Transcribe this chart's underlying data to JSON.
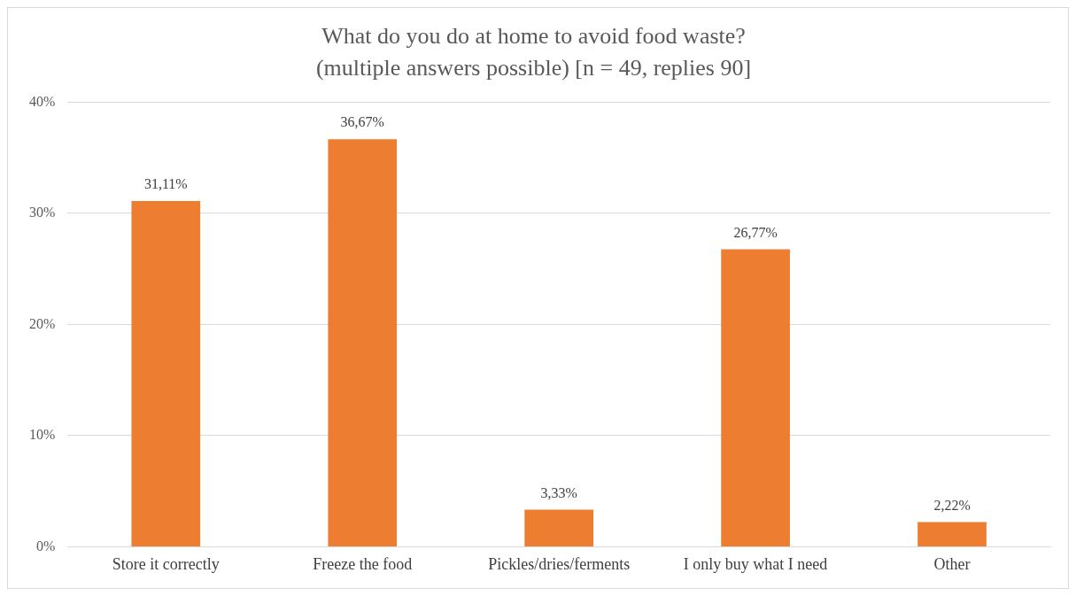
{
  "chart_data": {
    "type": "bar",
    "title": "What do you do at home to avoid food waste?",
    "subtitle": "(multiple answers possible) [n = 49, replies 90]",
    "categories": [
      "Store it correctly",
      "Freeze the food",
      "Pickles/dries/ferments",
      "I only buy what I need",
      "Other"
    ],
    "values": [
      31.11,
      36.67,
      3.33,
      26.77,
      2.22
    ],
    "value_labels": [
      "31,11%",
      "36,67%",
      "3,33%",
      "26,77%",
      "2,22%"
    ],
    "color": "#ed7d31",
    "ylim": [
      0,
      40
    ],
    "yticks": [
      {
        "value": 0,
        "label": "0%"
      },
      {
        "value": 10,
        "label": "10%"
      },
      {
        "value": 20,
        "label": "20%"
      },
      {
        "value": 30,
        "label": "30%"
      },
      {
        "value": 40,
        "label": "40%"
      }
    ],
    "grid": "y",
    "legend": false
  }
}
